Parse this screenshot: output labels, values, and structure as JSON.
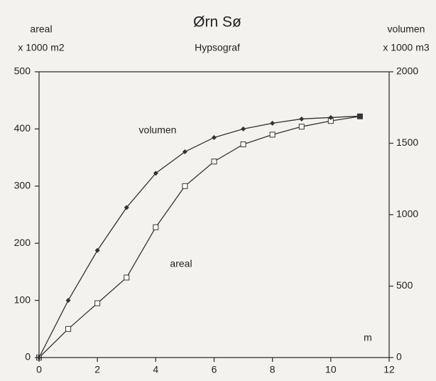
{
  "chart_data": {
    "type": "line",
    "title": "Ørn Sø",
    "subtitle": "Hypsograf",
    "ylabel": "areal",
    "yunit": "x 1000 m2",
    "y2label": "volumen",
    "y2unit": "x 1000 m3",
    "xlabel": "m",
    "x": [
      0,
      1,
      2,
      3,
      4,
      5,
      6,
      7,
      8,
      9,
      10,
      11
    ],
    "series": [
      {
        "name": "areal",
        "color": "#333333",
        "marker": "square",
        "values": [
          0,
          50,
          95,
          140,
          228,
          300,
          343,
          373,
          390,
          404,
          414,
          422
        ]
      },
      {
        "name": "volumen",
        "color": "#333333",
        "marker": "diamond",
        "axis": "y2",
        "values": [
          0,
          400,
          750,
          1050,
          1290,
          1440,
          1540,
          1600,
          1640,
          1670,
          1680,
          1690
        ]
      }
    ],
    "xlim": [
      0,
      12
    ],
    "xticks": [
      0,
      2,
      4,
      6,
      8,
      10,
      12
    ],
    "ylim": [
      0,
      500
    ],
    "yticks": [
      0,
      100,
      200,
      300,
      400,
      500
    ],
    "y2lim": [
      0,
      2000
    ],
    "y2ticks": [
      0,
      500,
      1000,
      1500,
      2000
    ]
  }
}
